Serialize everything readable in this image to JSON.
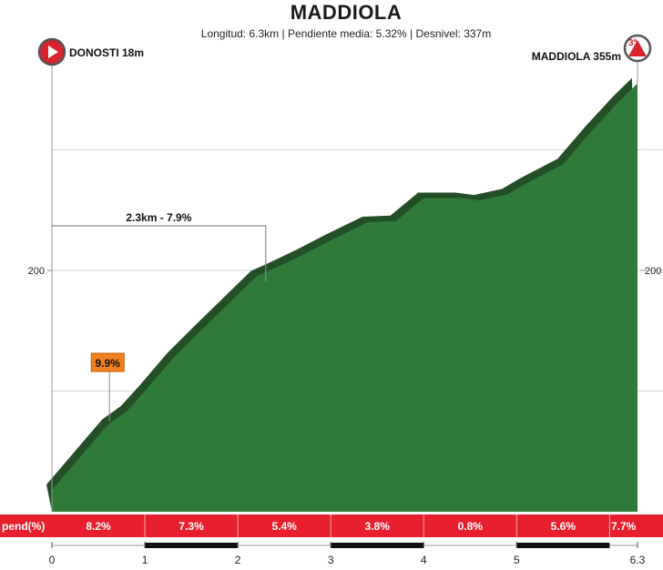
{
  "header": {
    "title": "MADDIOLA",
    "stats": {
      "length": "Longitud: 6.3km",
      "avg_gradient": "Pendiente media: 5.32%",
      "elevation_gain": "Desnivel: 337m",
      "separator": " | "
    }
  },
  "markers": {
    "start": {
      "label": "DONOSTI 18m",
      "icon": "play-marker-icon",
      "color": "#d9232d"
    },
    "finish": {
      "label": "MADDIOLA 355m",
      "icon": "mountain-category-icon",
      "category": "3ª",
      "color": "#d9232d"
    }
  },
  "chart_data": {
    "type": "area",
    "xlabel": "",
    "ylabel": "",
    "xlim": [
      0,
      6.3
    ],
    "ylim": [
      0,
      400
    ],
    "y_ticks_labeled": [
      200
    ],
    "y_gridlines": [
      100,
      200,
      300
    ],
    "x_ticks": [
      "0",
      "1",
      "2",
      "3",
      "4",
      "5",
      "6.3"
    ],
    "x_tick_values": [
      0,
      1,
      2,
      3,
      4,
      5,
      6.3
    ],
    "fill_color": "#2f7a36",
    "shadow_color": "#234f27",
    "profile": [
      [
        0.0,
        18
      ],
      [
        0.3,
        45
      ],
      [
        0.6,
        72
      ],
      [
        0.8,
        83
      ],
      [
        1.0,
        100
      ],
      [
        1.3,
        127
      ],
      [
        1.6,
        150
      ],
      [
        2.0,
        180
      ],
      [
        2.2,
        195
      ],
      [
        2.4,
        202
      ],
      [
        2.7,
        213
      ],
      [
        3.0,
        225
      ],
      [
        3.4,
        240
      ],
      [
        3.7,
        241
      ],
      [
        4.0,
        260
      ],
      [
        4.4,
        260
      ],
      [
        4.6,
        258
      ],
      [
        4.9,
        263
      ],
      [
        5.1,
        272
      ],
      [
        5.5,
        288
      ],
      [
        5.8,
        315
      ],
      [
        6.1,
        340
      ],
      [
        6.3,
        355
      ]
    ],
    "annotations": [
      {
        "text": "2.3km - 7.9%",
        "x_start": 0,
        "x_end": 2.3,
        "type": "bracket"
      },
      {
        "text": "9.9%",
        "x": 0.6,
        "type": "max-gradient-callout",
        "color": "#f07f1e"
      }
    ],
    "gradient_strip": {
      "label": "pend(%)",
      "color": "#e8202e",
      "segments": [
        {
          "from": 0,
          "to": 1,
          "value": "8.2%"
        },
        {
          "from": 1,
          "to": 2,
          "value": "7.3%"
        },
        {
          "from": 2,
          "to": 3,
          "value": "5.4%"
        },
        {
          "from": 3,
          "to": 4,
          "value": "3.8%"
        },
        {
          "from": 4,
          "to": 5,
          "value": "0.8%"
        },
        {
          "from": 5,
          "to": 6,
          "value": "5.6%"
        },
        {
          "from": 6,
          "to": 6.3,
          "value": "7.7%"
        }
      ]
    }
  }
}
